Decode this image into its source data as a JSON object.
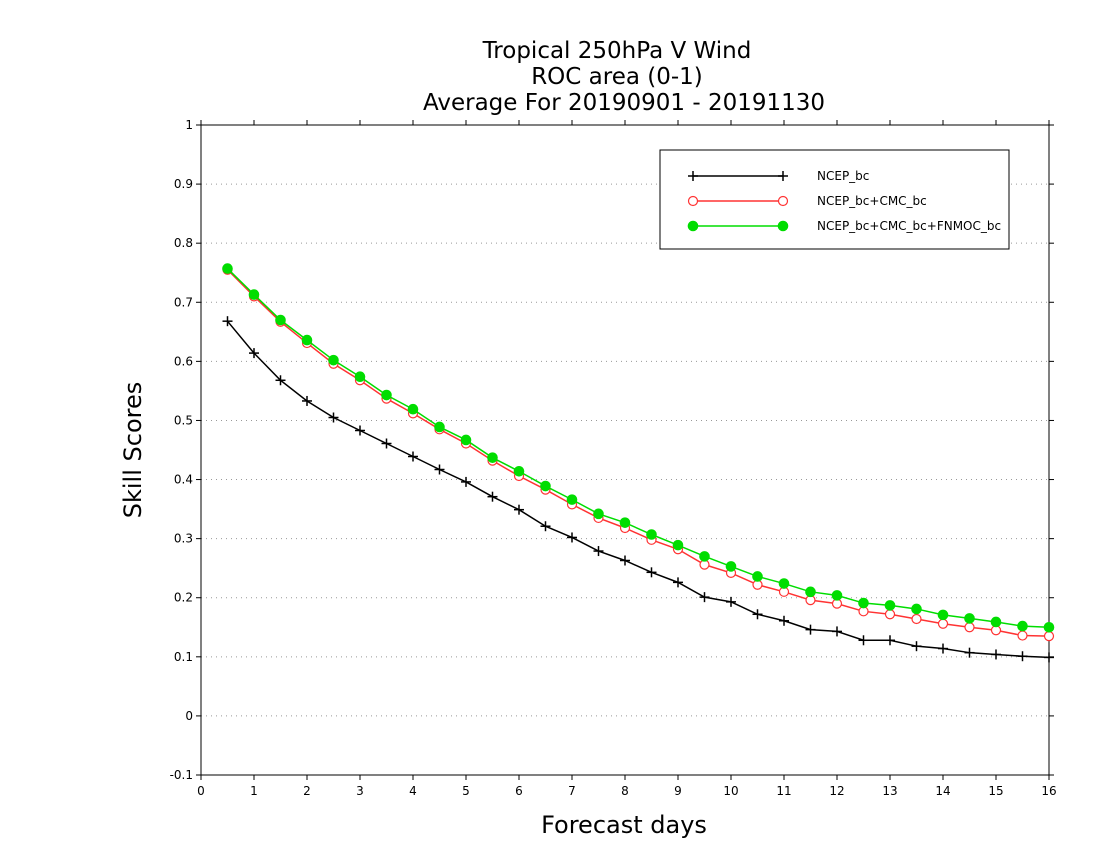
{
  "chart_data": {
    "type": "line",
    "title": [
      "Tropical 250hPa V Wind",
      "ROC area (0-1)",
      "Average For 20190901 - 20191130"
    ],
    "xlabel": "Forecast days",
    "ylabel": "Skill Scores",
    "xlim": [
      0,
      16
    ],
    "ylim": [
      -0.1,
      1
    ],
    "x_ticks": [
      "0",
      "1",
      "2",
      "3",
      "4",
      "5",
      "6",
      "7",
      "8",
      "9",
      "10",
      "11",
      "12",
      "13",
      "14",
      "15",
      "16"
    ],
    "y_ticks": [
      "-0.1",
      "0",
      "0.1",
      "0.2",
      "0.3",
      "0.4",
      "0.5",
      "0.6",
      "0.7",
      "0.8",
      "0.9",
      "1"
    ],
    "y_tick_values": [
      -0.1,
      0,
      0.1,
      0.2,
      0.3,
      0.4,
      0.5,
      0.6,
      0.7,
      0.8,
      0.9,
      1
    ],
    "grid": "horizontal dotted",
    "legend_position": "top-right",
    "x": [
      0.5,
      1,
      1.5,
      2,
      2.5,
      3,
      3.5,
      4,
      4.5,
      5,
      5.5,
      6,
      6.5,
      7,
      7.5,
      8,
      8.5,
      9,
      9.5,
      10,
      10.5,
      11,
      11.5,
      12,
      12.5,
      13,
      13.5,
      14,
      14.5,
      15,
      15.5,
      16
    ],
    "series": [
      {
        "name": "NCEP_bc",
        "color": "#000000",
        "marker": "plus",
        "values": [
          0.668,
          0.614,
          0.568,
          0.533,
          0.505,
          0.483,
          0.461,
          0.439,
          0.417,
          0.396,
          0.371,
          0.349,
          0.321,
          0.302,
          0.279,
          0.263,
          0.243,
          0.226,
          0.201,
          0.193,
          0.172,
          0.161,
          0.146,
          0.143,
          0.128,
          0.128,
          0.118,
          0.114,
          0.107,
          0.104,
          0.101,
          0.099
        ]
      },
      {
        "name": "NCEP_bc+CMC_bc",
        "color": "#ff3333",
        "marker": "open-circle",
        "values": [
          0.755,
          0.71,
          0.667,
          0.631,
          0.596,
          0.568,
          0.537,
          0.512,
          0.485,
          0.461,
          0.432,
          0.406,
          0.383,
          0.358,
          0.335,
          0.318,
          0.298,
          0.282,
          0.256,
          0.242,
          0.222,
          0.21,
          0.196,
          0.19,
          0.177,
          0.172,
          0.164,
          0.156,
          0.15,
          0.145,
          0.136,
          0.135
        ]
      },
      {
        "name": "NCEP_bc+CMC_bc+FNMOC_bc",
        "color": "#00dd00",
        "marker": "filled-circle",
        "values": [
          0.757,
          0.713,
          0.67,
          0.636,
          0.602,
          0.574,
          0.543,
          0.519,
          0.489,
          0.467,
          0.437,
          0.414,
          0.389,
          0.366,
          0.342,
          0.327,
          0.307,
          0.289,
          0.27,
          0.253,
          0.236,
          0.224,
          0.21,
          0.204,
          0.191,
          0.187,
          0.181,
          0.171,
          0.165,
          0.159,
          0.152,
          0.15
        ]
      }
    ]
  }
}
